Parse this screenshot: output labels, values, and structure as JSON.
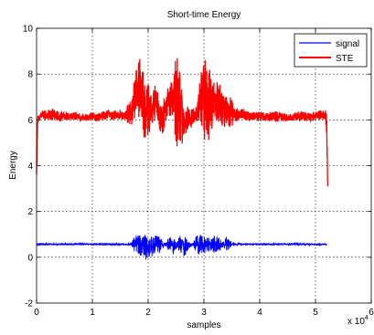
{
  "chart_data": {
    "type": "line",
    "title": "Short-time Energy",
    "xlabel": "samples",
    "ylabel": "Energy",
    "x_exponent": "x 10",
    "x_exponent_power": "4",
    "xlim": [
      0,
      6
    ],
    "ylim": [
      -2,
      10
    ],
    "xticks": [
      "0",
      "1",
      "2",
      "3",
      "4",
      "5",
      "6"
    ],
    "yticks": [
      "-2",
      "0",
      "2",
      "4",
      "6",
      "8",
      "10"
    ],
    "grid": true,
    "legend": {
      "placement": "top-right"
    },
    "series": [
      {
        "name": "signal",
        "color": "#0000ff",
        "baseline": 0.57,
        "x": [
          0.0,
          1.7,
          1.75,
          1.8,
          1.85,
          1.9,
          1.95,
          2.0,
          2.05,
          2.1,
          2.15,
          2.2,
          2.25,
          2.3,
          2.35,
          2.4,
          2.45,
          2.5,
          2.55,
          2.6,
          2.65,
          2.7,
          2.75,
          2.8,
          2.85,
          2.9,
          2.95,
          3.0,
          3.05,
          3.1,
          3.15,
          3.2,
          3.25,
          3.3,
          3.35,
          3.4,
          3.45,
          3.5,
          3.55,
          3.6,
          3.65,
          5.2
        ],
        "upper": [
          0.62,
          0.62,
          0.95,
          1.0,
          1.0,
          1.0,
          1.0,
          1.0,
          1.0,
          1.0,
          1.0,
          0.95,
          0.75,
          0.65,
          0.85,
          0.95,
          0.9,
          0.7,
          0.9,
          1.0,
          0.95,
          0.8,
          0.65,
          0.62,
          0.9,
          1.0,
          1.0,
          1.0,
          0.9,
          0.85,
          0.95,
          0.95,
          0.9,
          0.8,
          0.75,
          0.9,
          0.8,
          0.7,
          0.65,
          0.62,
          0.62,
          0.62
        ],
        "lower": [
          0.52,
          0.52,
          0.2,
          0.15,
          0.1,
          -0.1,
          -0.25,
          -0.2,
          0.0,
          0.05,
          0.05,
          0.15,
          0.35,
          0.45,
          0.3,
          0.15,
          0.1,
          0.3,
          0.25,
          0.05,
          0.0,
          0.2,
          0.4,
          0.5,
          0.25,
          0.1,
          0.05,
          0.05,
          0.15,
          0.25,
          0.2,
          0.15,
          0.2,
          0.3,
          0.35,
          0.25,
          0.35,
          0.45,
          0.5,
          0.52,
          0.52,
          0.52
        ]
      },
      {
        "name": "STE",
        "color": "#ff0000",
        "x": [
          0.0,
          0.02,
          0.05,
          0.1,
          0.2,
          0.3,
          0.4,
          0.5,
          0.6,
          0.7,
          0.8,
          0.9,
          1.0,
          1.1,
          1.2,
          1.3,
          1.4,
          1.5,
          1.6,
          1.7,
          1.75,
          1.8,
          1.85,
          1.88,
          1.9,
          1.95,
          2.0,
          2.05,
          2.1,
          2.15,
          2.2,
          2.25,
          2.3,
          2.35,
          2.4,
          2.45,
          2.5,
          2.55,
          2.6,
          2.65,
          2.7,
          2.75,
          2.8,
          2.85,
          2.9,
          2.95,
          3.0,
          3.05,
          3.1,
          3.15,
          3.2,
          3.25,
          3.3,
          3.35,
          3.4,
          3.45,
          3.5,
          3.55,
          3.6,
          3.65,
          3.7,
          3.8,
          3.9,
          4.0,
          4.1,
          4.2,
          4.3,
          4.4,
          4.5,
          4.6,
          4.7,
          4.8,
          4.9,
          5.0,
          5.1,
          5.15,
          5.18,
          5.2,
          5.22
        ],
        "upper": [
          4.6,
          6.2,
          6.3,
          6.4,
          6.45,
          6.5,
          6.35,
          6.4,
          6.3,
          6.35,
          6.3,
          6.25,
          6.35,
          6.3,
          6.4,
          6.45,
          6.4,
          6.45,
          6.5,
          7.0,
          7.8,
          8.4,
          8.8,
          8.6,
          8.2,
          7.9,
          7.6,
          7.4,
          7.6,
          7.4,
          7.0,
          6.7,
          7.1,
          7.4,
          7.6,
          8.0,
          8.9,
          8.6,
          7.6,
          7.0,
          6.6,
          6.5,
          6.5,
          6.6,
          7.2,
          8.3,
          8.8,
          8.6,
          8.2,
          7.9,
          7.6,
          7.7,
          7.5,
          7.2,
          7.0,
          7.1,
          6.9,
          6.6,
          6.5,
          6.45,
          6.5,
          6.4,
          6.35,
          6.4,
          6.3,
          6.35,
          6.4,
          6.3,
          6.35,
          6.3,
          6.4,
          6.35,
          6.3,
          6.4,
          6.45,
          6.4,
          6.45,
          6.5,
          3.1
        ],
        "lower": [
          3.2,
          5.9,
          5.95,
          6.0,
          5.95,
          6.0,
          5.9,
          6.0,
          5.95,
          6.0,
          5.9,
          5.95,
          5.95,
          5.9,
          6.0,
          5.95,
          6.0,
          6.0,
          5.95,
          5.6,
          5.9,
          6.0,
          6.0,
          5.8,
          5.2,
          5.0,
          5.3,
          5.6,
          5.9,
          5.8,
          5.4,
          5.3,
          5.7,
          5.9,
          6.0,
          5.7,
          4.8,
          4.5,
          4.9,
          5.2,
          5.5,
          5.6,
          5.7,
          5.9,
          5.8,
          5.6,
          5.0,
          4.6,
          5.2,
          5.6,
          5.8,
          5.9,
          5.8,
          5.7,
          5.6,
          5.6,
          5.7,
          5.8,
          5.9,
          5.95,
          6.0,
          5.95,
          5.9,
          5.95,
          5.9,
          5.95,
          5.9,
          5.95,
          5.9,
          5.95,
          5.9,
          5.95,
          5.9,
          6.0,
          5.95,
          6.0,
          5.95,
          5.0,
          3.1
        ]
      }
    ]
  }
}
